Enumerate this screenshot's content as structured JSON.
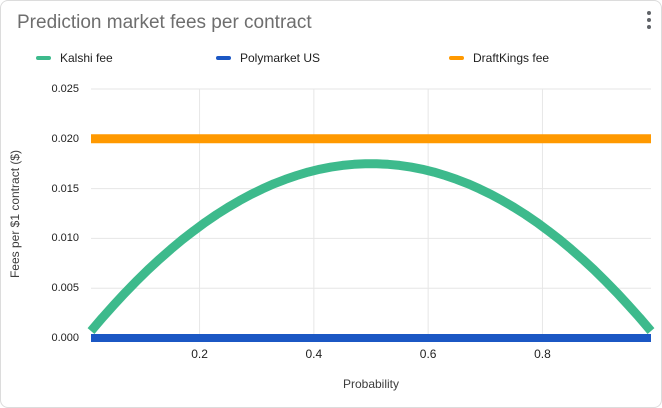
{
  "menu": {
    "kebab_tooltip": "chart-options"
  },
  "chart_data": {
    "type": "line",
    "title": "Prediction market fees per contract",
    "xlabel": "Probability",
    "ylabel": "Fees per $1 contract ($)",
    "xlim": [
      0.01,
      0.99
    ],
    "ylim": [
      0,
      0.025
    ],
    "x_ticks": [
      0.2,
      0.4,
      0.6,
      0.8
    ],
    "x_tick_labels": [
      "0.2",
      "0.4",
      "0.6",
      "0.8"
    ],
    "y_ticks": [
      0,
      0.005,
      0.01,
      0.015,
      0.02,
      0.025
    ],
    "y_tick_labels": [
      "0.000",
      "0.005",
      "0.010",
      "0.015",
      "0.020",
      "0.025"
    ],
    "grid": true,
    "legend_position": "top",
    "colors": {
      "grid": "#e6e6e6",
      "axis_baseline": "#616161",
      "title_text": "#6e6e6e",
      "tick_text": "#222222"
    },
    "series": [
      {
        "name": "Kalshi fee",
        "color": "#3dba8c",
        "x": [
          0.01,
          0.03,
          0.05,
          0.07,
          0.09,
          0.11,
          0.13,
          0.15,
          0.17,
          0.19,
          0.21,
          0.23,
          0.25,
          0.27,
          0.29,
          0.31,
          0.33,
          0.35,
          0.37,
          0.39,
          0.41,
          0.43,
          0.45,
          0.47,
          0.49,
          0.51,
          0.53,
          0.55,
          0.57,
          0.59,
          0.61,
          0.63,
          0.65,
          0.67,
          0.69,
          0.71,
          0.73,
          0.75,
          0.77,
          0.79,
          0.81,
          0.83,
          0.85,
          0.87,
          0.89,
          0.91,
          0.93,
          0.95,
          0.97,
          0.99
        ],
        "values": [
          0.000693,
          0.002037,
          0.003325,
          0.004557,
          0.005733,
          0.006853,
          0.007917,
          0.008925,
          0.009877,
          0.010773,
          0.011613,
          0.012397,
          0.013125,
          0.013797,
          0.014413,
          0.014973,
          0.015477,
          0.015925,
          0.016317,
          0.016653,
          0.016933,
          0.017157,
          0.017325,
          0.017437,
          0.017493,
          0.017493,
          0.017437,
          0.017325,
          0.017157,
          0.016933,
          0.016653,
          0.016317,
          0.015925,
          0.015477,
          0.014973,
          0.014413,
          0.013797,
          0.013125,
          0.012397,
          0.011613,
          0.010773,
          0.009877,
          0.008925,
          0.007917,
          0.006853,
          0.005733,
          0.004557,
          0.003325,
          0.002037,
          0.000693
        ]
      },
      {
        "name": "Polymarket US",
        "color": "#1b57c4",
        "x": [
          0.01,
          0.99
        ],
        "values": [
          0,
          0
        ]
      },
      {
        "name": "DraftKings fee",
        "color": "#ff9900",
        "x": [
          0.01,
          0.99
        ],
        "values": [
          0.02,
          0.02
        ]
      }
    ]
  }
}
